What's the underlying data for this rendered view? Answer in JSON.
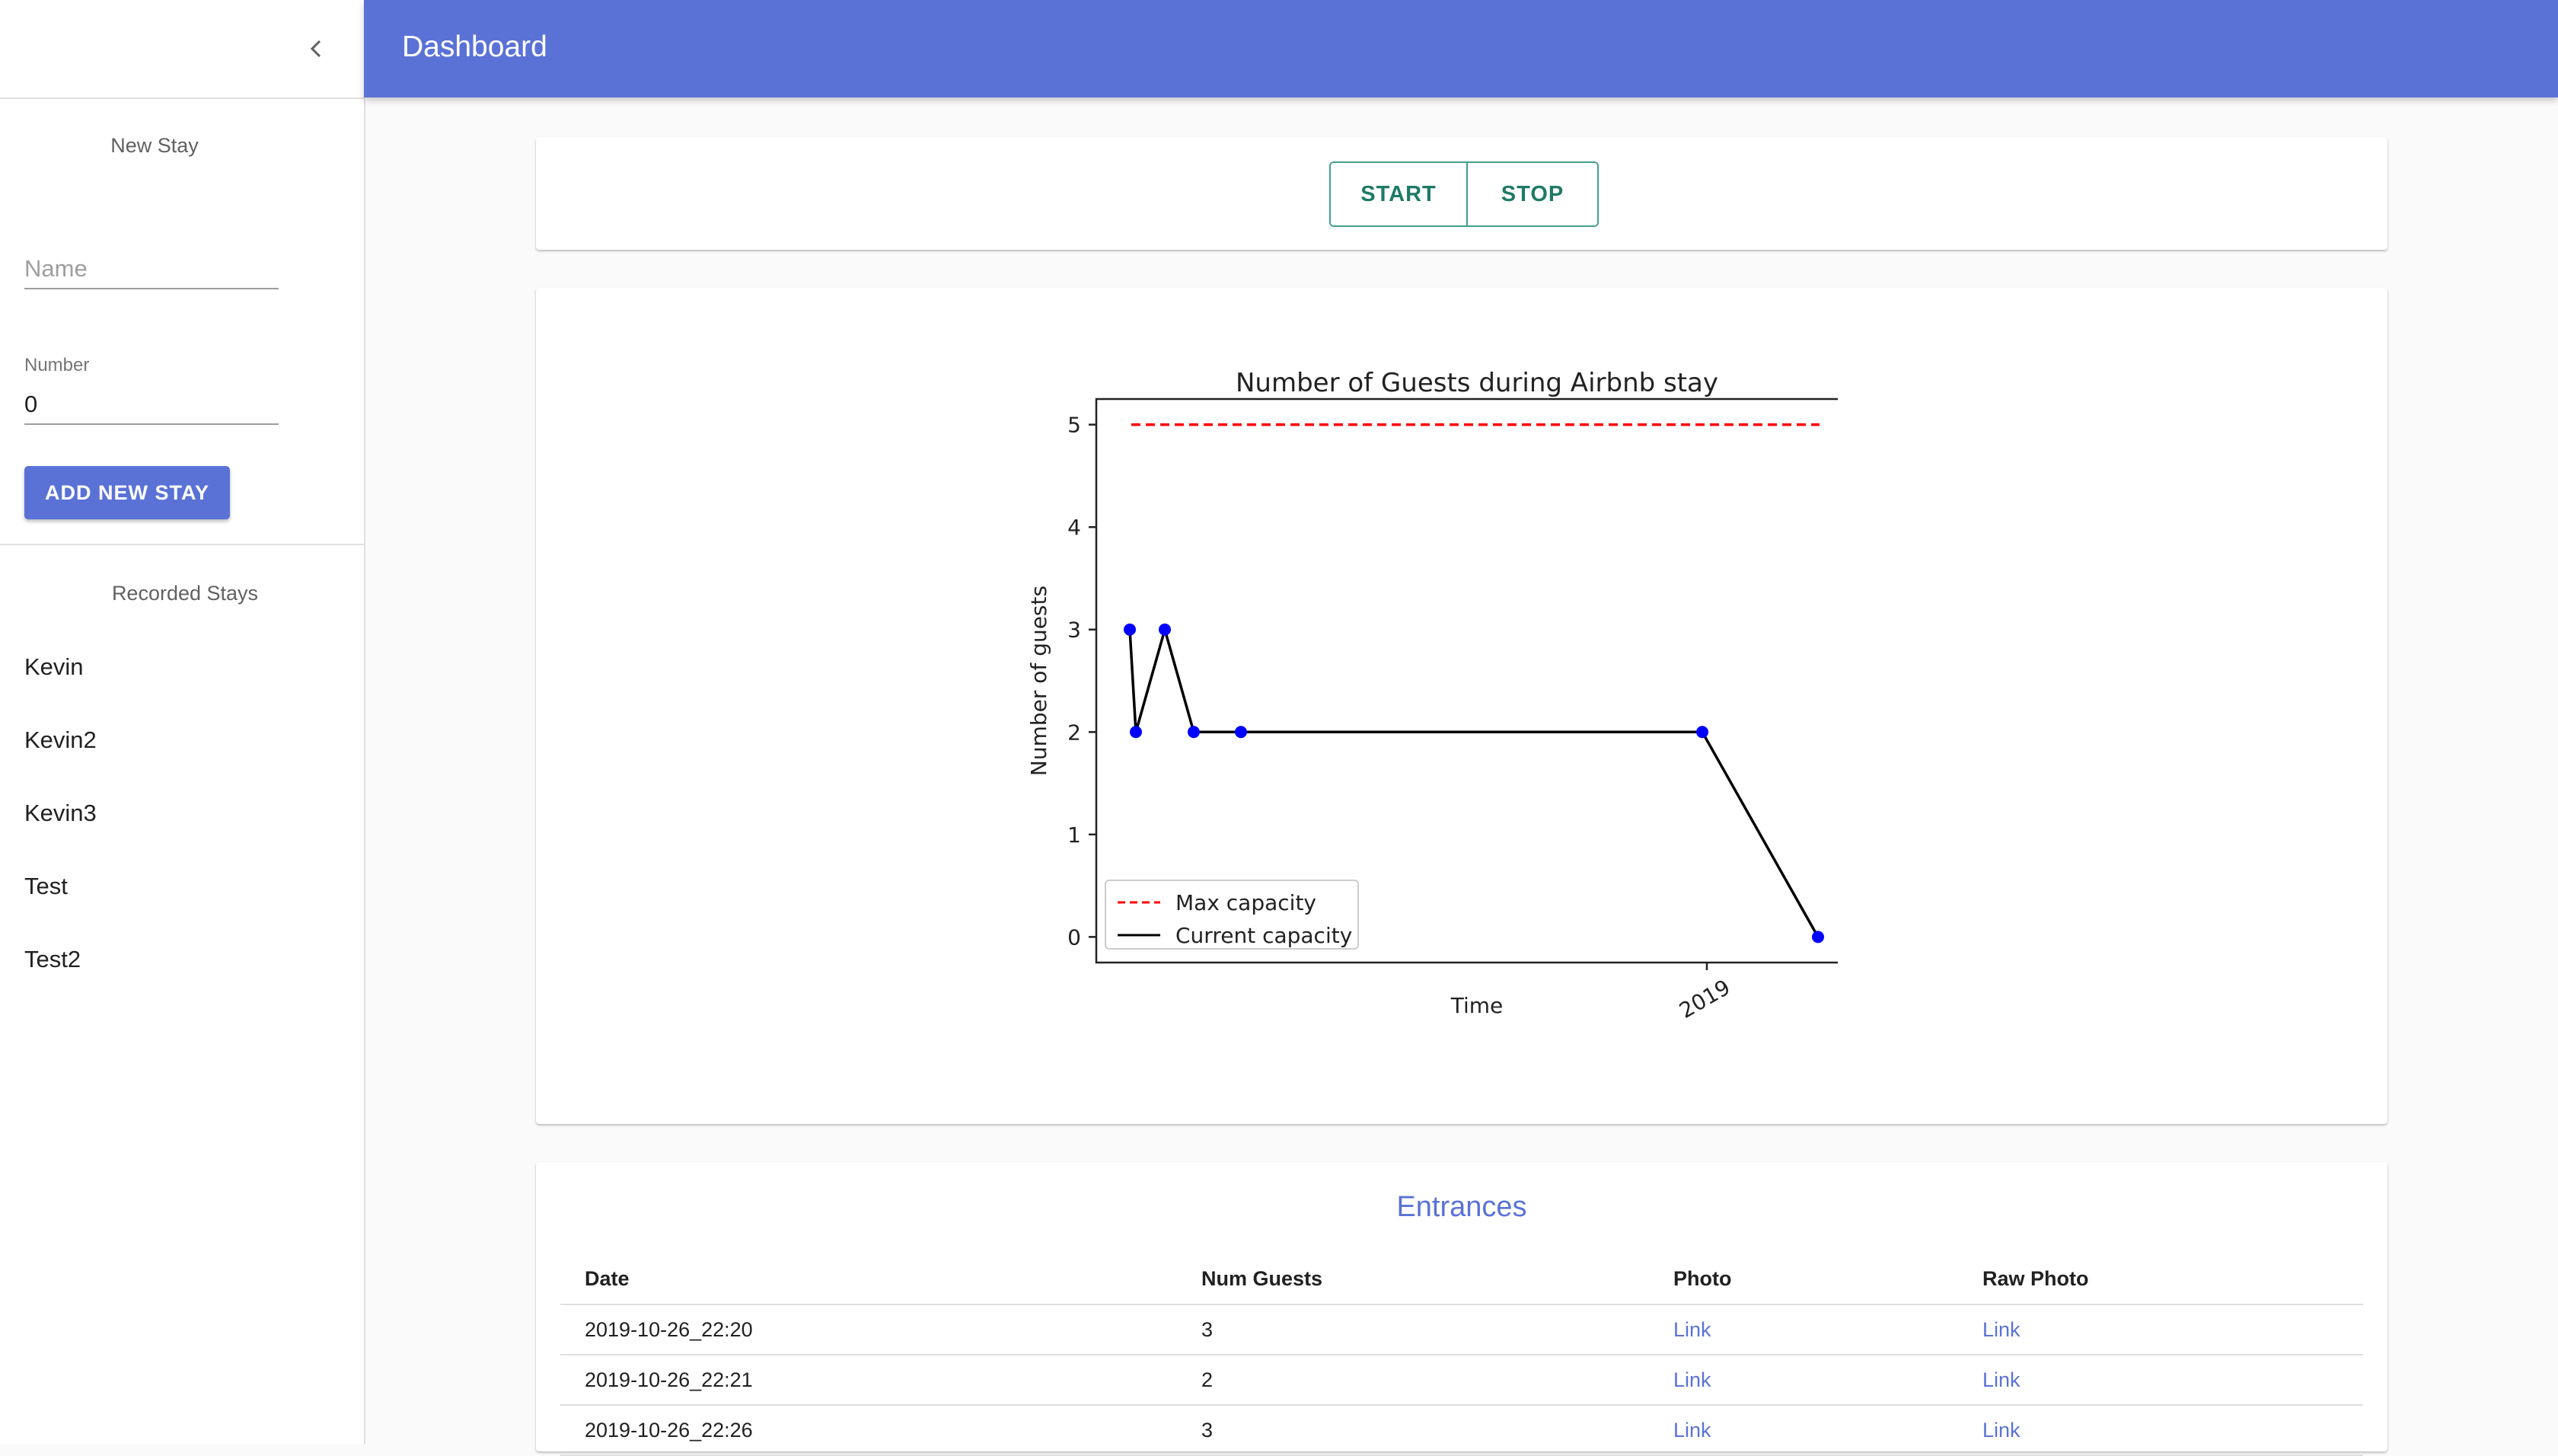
{
  "header": {
    "title": "Dashboard"
  },
  "sidebar": {
    "new_stay_title": "New Stay",
    "name_placeholder": "Name",
    "number_label": "Number",
    "number_value": "0",
    "add_button": "ADD NEW STAY",
    "recorded_title": "Recorded Stays",
    "stays": [
      "Kevin",
      "Kevin2",
      "Kevin3",
      "Test",
      "Test2"
    ]
  },
  "controls": {
    "start": "START",
    "stop": "STOP"
  },
  "chart_data": {
    "type": "line",
    "title": "Number of Guests during Airbnb stay",
    "xlabel": "Time",
    "ylabel": "Number of guests",
    "yticks": [
      "0",
      "1",
      "2",
      "3",
      "4",
      "5"
    ],
    "xtick_label": "2019",
    "ylim": [
      -0.25,
      5.25
    ],
    "series": [
      {
        "name": "Max capacity",
        "color": "#ff0000",
        "style": "dashed",
        "values": [
          5,
          5
        ]
      },
      {
        "name": "Current capacity",
        "color": "#000000",
        "marker_color": "#0000ff",
        "values": [
          3,
          2,
          3,
          2,
          2,
          2,
          0
        ]
      }
    ],
    "legend": "lower-left"
  },
  "entrances": {
    "title": "Entrances",
    "columns": [
      "Date",
      "Num Guests",
      "Photo",
      "Raw Photo"
    ],
    "rows": [
      {
        "date": "2019-10-26_22:20",
        "num": "3",
        "photo": "Link",
        "raw": "Link"
      },
      {
        "date": "2019-10-26_22:21",
        "num": "2",
        "photo": "Link",
        "raw": "Link"
      },
      {
        "date": "2019-10-26_22:26",
        "num": "3",
        "photo": "Link",
        "raw": "Link"
      }
    ]
  }
}
